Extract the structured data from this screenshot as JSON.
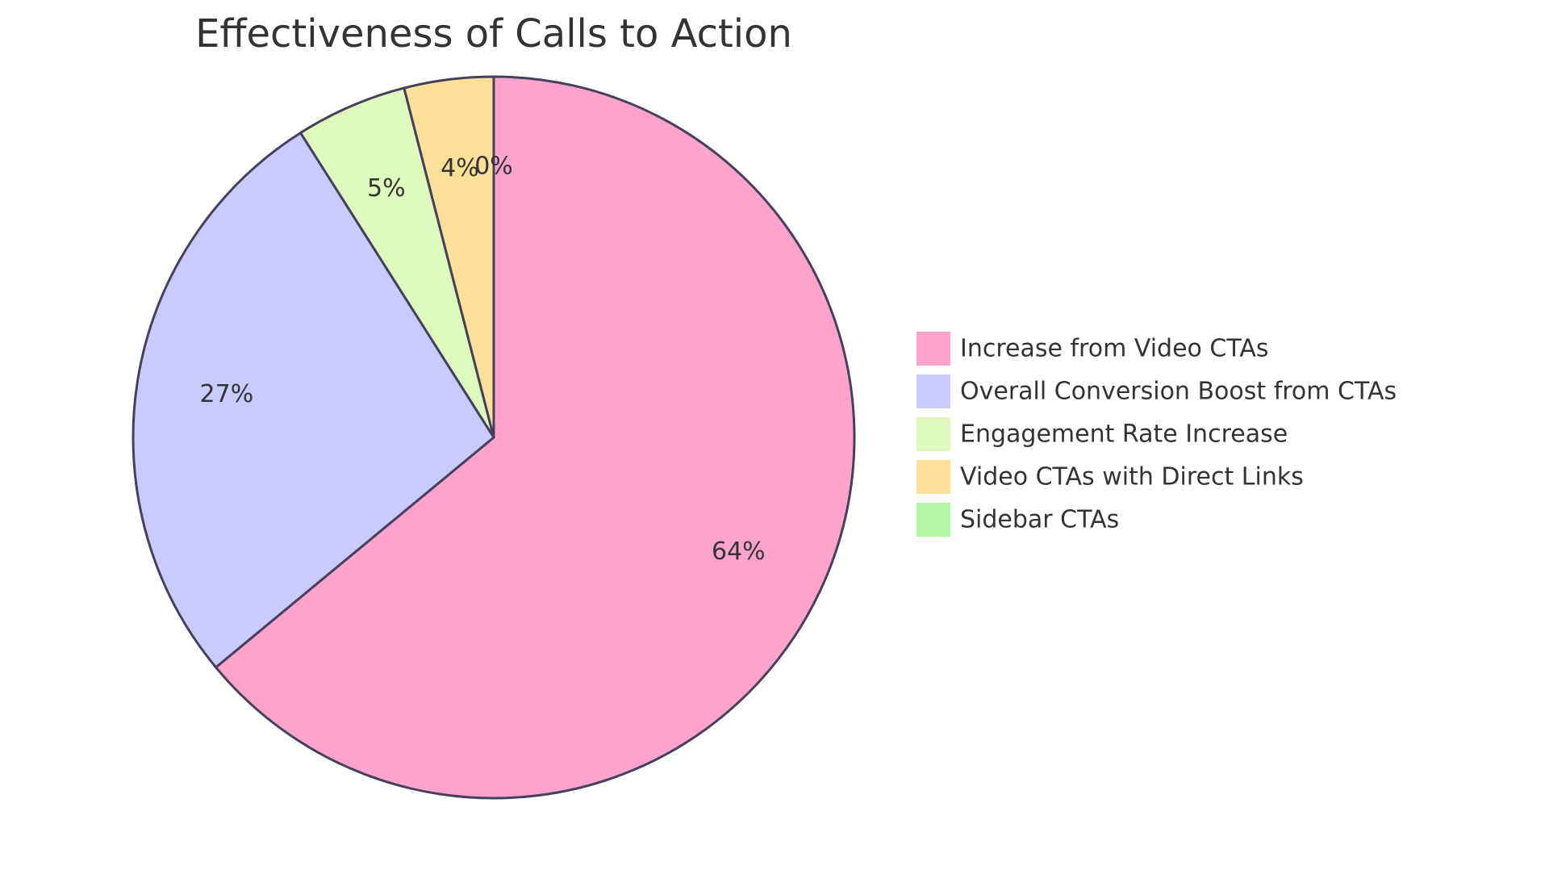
{
  "chart_data": {
    "type": "pie",
    "title": "Effectiveness of Calls to Action",
    "slices": [
      {
        "name": "Increase from Video CTAs",
        "value": 64,
        "label": "64%",
        "color": "#FFA3CD"
      },
      {
        "name": "Overall Conversion Boost from CTAs",
        "value": 27,
        "label": "27%",
        "color": "#C7CBFF"
      },
      {
        "name": "Engagement Rate Increase",
        "value": 5,
        "label": "5%",
        "color": "#DDF9BC"
      },
      {
        "name": "Video CTAs with Direct Links",
        "value": 4,
        "label": "4%",
        "color": "#FCE097"
      },
      {
        "name": "Sidebar CTAs",
        "value": 0,
        "label": "0%",
        "color": "#B3F7A4"
      }
    ],
    "slice_border_color": "#45405E",
    "start_angle": "12 o'clock, clockwise",
    "legend_position": "right"
  }
}
